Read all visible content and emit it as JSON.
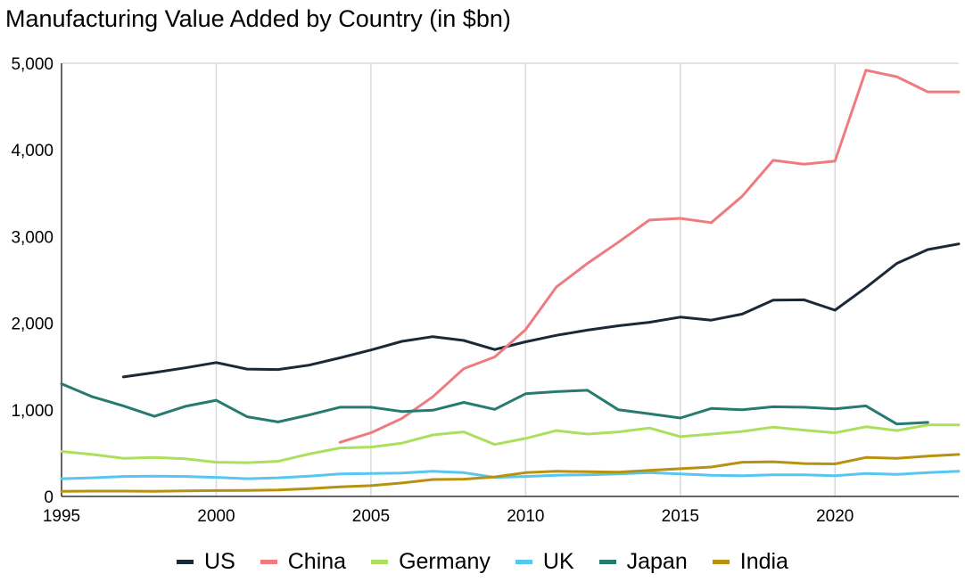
{
  "chart_data": {
    "type": "line",
    "title": "Manufacturing Value Added by Country (in $bn)",
    "xlabel": "",
    "ylabel": "",
    "xlim": [
      1995,
      2024
    ],
    "ylim": [
      0,
      5000
    ],
    "x_ticks": [
      1995,
      2000,
      2005,
      2010,
      2015,
      2020
    ],
    "x_tick_labels": [
      "1995",
      "2000",
      "2005",
      "2010",
      "2015",
      "2020"
    ],
    "y_ticks": [
      0,
      1000,
      2000,
      3000,
      4000,
      5000
    ],
    "y_tick_labels": [
      "0",
      "1,000",
      "2,000",
      "3,000",
      "4,000",
      "5,000"
    ],
    "grid": "vertical",
    "legend_position": "bottom",
    "series": [
      {
        "name": "US",
        "color": "#1b2838",
        "points": [
          [
            1997,
            1380
          ],
          [
            1998,
            1430
          ],
          [
            1999,
            1485
          ],
          [
            2000,
            1545
          ],
          [
            2001,
            1470
          ],
          [
            2002,
            1465
          ],
          [
            2003,
            1515
          ],
          [
            2004,
            1600
          ],
          [
            2005,
            1690
          ],
          [
            2006,
            1790
          ],
          [
            2007,
            1845
          ],
          [
            2008,
            1800
          ],
          [
            2009,
            1695
          ],
          [
            2010,
            1785
          ],
          [
            2011,
            1860
          ],
          [
            2012,
            1920
          ],
          [
            2013,
            1970
          ],
          [
            2014,
            2010
          ],
          [
            2015,
            2070
          ],
          [
            2016,
            2035
          ],
          [
            2017,
            2105
          ],
          [
            2018,
            2265
          ],
          [
            2019,
            2270
          ],
          [
            2020,
            2150
          ],
          [
            2021,
            2410
          ],
          [
            2022,
            2690
          ],
          [
            2023,
            2850
          ],
          [
            2024,
            2915
          ]
        ]
      },
      {
        "name": "China",
        "color": "#ee7b7d",
        "points": [
          [
            2004,
            625
          ],
          [
            2005,
            735
          ],
          [
            2006,
            900
          ],
          [
            2007,
            1150
          ],
          [
            2008,
            1475
          ],
          [
            2009,
            1610
          ],
          [
            2010,
            1925
          ],
          [
            2011,
            2420
          ],
          [
            2012,
            2690
          ],
          [
            2013,
            2935
          ],
          [
            2014,
            3190
          ],
          [
            2015,
            3210
          ],
          [
            2016,
            3160
          ],
          [
            2017,
            3465
          ],
          [
            2018,
            3880
          ],
          [
            2019,
            3835
          ],
          [
            2020,
            3870
          ],
          [
            2021,
            4920
          ],
          [
            2022,
            4845
          ],
          [
            2023,
            4670
          ],
          [
            2024,
            4670
          ]
        ]
      },
      {
        "name": "Germany",
        "color": "#acdf5e",
        "points": [
          [
            1995,
            520
          ],
          [
            1996,
            485
          ],
          [
            1997,
            440
          ],
          [
            1998,
            450
          ],
          [
            1999,
            435
          ],
          [
            2000,
            395
          ],
          [
            2001,
            390
          ],
          [
            2002,
            405
          ],
          [
            2003,
            490
          ],
          [
            2004,
            560
          ],
          [
            2005,
            570
          ],
          [
            2006,
            615
          ],
          [
            2007,
            710
          ],
          [
            2008,
            745
          ],
          [
            2009,
            600
          ],
          [
            2010,
            670
          ],
          [
            2011,
            760
          ],
          [
            2012,
            720
          ],
          [
            2013,
            745
          ],
          [
            2014,
            790
          ],
          [
            2015,
            690
          ],
          [
            2016,
            720
          ],
          [
            2017,
            750
          ],
          [
            2018,
            800
          ],
          [
            2019,
            765
          ],
          [
            2020,
            735
          ],
          [
            2021,
            805
          ],
          [
            2022,
            760
          ],
          [
            2023,
            825
          ],
          [
            2024,
            825
          ]
        ]
      },
      {
        "name": "UK",
        "color": "#57c6f0",
        "points": [
          [
            1995,
            205
          ],
          [
            1996,
            215
          ],
          [
            1997,
            230
          ],
          [
            1998,
            235
          ],
          [
            1999,
            230
          ],
          [
            2000,
            220
          ],
          [
            2001,
            205
          ],
          [
            2002,
            215
          ],
          [
            2003,
            235
          ],
          [
            2004,
            260
          ],
          [
            2005,
            265
          ],
          [
            2006,
            270
          ],
          [
            2007,
            290
          ],
          [
            2008,
            275
          ],
          [
            2009,
            220
          ],
          [
            2010,
            230
          ],
          [
            2011,
            245
          ],
          [
            2012,
            250
          ],
          [
            2013,
            260
          ],
          [
            2014,
            275
          ],
          [
            2015,
            260
          ],
          [
            2016,
            245
          ],
          [
            2017,
            240
          ],
          [
            2018,
            250
          ],
          [
            2019,
            250
          ],
          [
            2020,
            240
          ],
          [
            2021,
            265
          ],
          [
            2022,
            255
          ],
          [
            2023,
            275
          ],
          [
            2024,
            290
          ]
        ]
      },
      {
        "name": "Japan",
        "color": "#267a6f",
        "points": [
          [
            1995,
            1300
          ],
          [
            1996,
            1150
          ],
          [
            1997,
            1045
          ],
          [
            1998,
            925
          ],
          [
            1999,
            1040
          ],
          [
            2000,
            1110
          ],
          [
            2001,
            920
          ],
          [
            2002,
            860
          ],
          [
            2003,
            940
          ],
          [
            2004,
            1030
          ],
          [
            2005,
            1030
          ],
          [
            2006,
            980
          ],
          [
            2007,
            995
          ],
          [
            2008,
            1085
          ],
          [
            2009,
            1005
          ],
          [
            2010,
            1185
          ],
          [
            2011,
            1210
          ],
          [
            2012,
            1225
          ],
          [
            2013,
            1000
          ],
          [
            2014,
            955
          ],
          [
            2015,
            905
          ],
          [
            2016,
            1015
          ],
          [
            2017,
            1000
          ],
          [
            2018,
            1035
          ],
          [
            2019,
            1030
          ],
          [
            2020,
            1010
          ],
          [
            2021,
            1045
          ],
          [
            2022,
            835
          ],
          [
            2023,
            855
          ]
        ]
      },
      {
        "name": "India",
        "color": "#b8920f",
        "points": [
          [
            1995,
            60
          ],
          [
            1996,
            62
          ],
          [
            1997,
            62
          ],
          [
            1998,
            60
          ],
          [
            1999,
            65
          ],
          [
            2000,
            68
          ],
          [
            2001,
            70
          ],
          [
            2002,
            75
          ],
          [
            2003,
            90
          ],
          [
            2004,
            110
          ],
          [
            2005,
            125
          ],
          [
            2006,
            155
          ],
          [
            2007,
            195
          ],
          [
            2008,
            200
          ],
          [
            2009,
            225
          ],
          [
            2010,
            275
          ],
          [
            2011,
            290
          ],
          [
            2012,
            285
          ],
          [
            2013,
            280
          ],
          [
            2014,
            300
          ],
          [
            2015,
            320
          ],
          [
            2016,
            340
          ],
          [
            2017,
            395
          ],
          [
            2018,
            400
          ],
          [
            2019,
            380
          ],
          [
            2020,
            375
          ],
          [
            2021,
            450
          ],
          [
            2022,
            440
          ],
          [
            2023,
            465
          ],
          [
            2024,
            485
          ]
        ]
      }
    ]
  }
}
